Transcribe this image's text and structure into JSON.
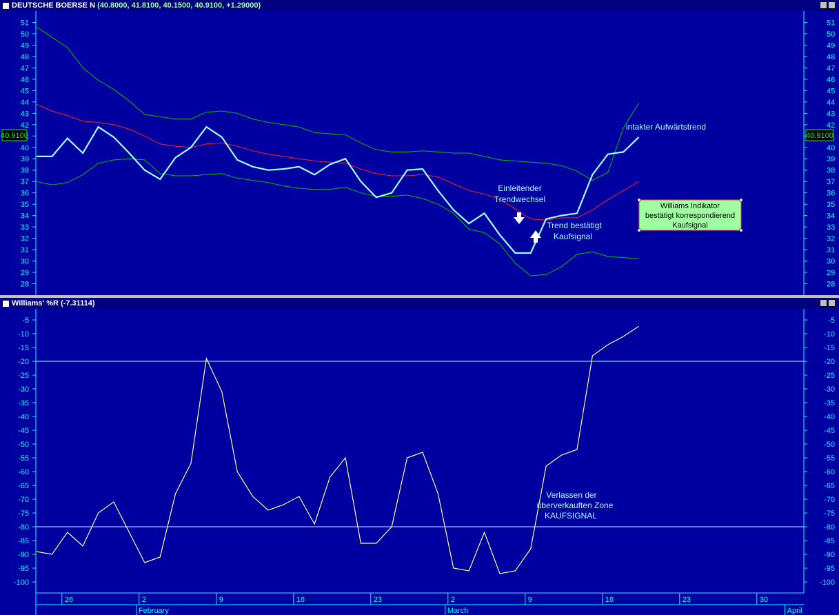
{
  "price_panel": {
    "title": "DEUTSCHE BOERSE N",
    "values_text": "(40.8000, 41.8100, 40.1500, 40.9100, +1.29000)",
    "last_price_label": "40.9100"
  },
  "indicator_panel": {
    "title": "Williams' %R",
    "values_text": "(-7.31114)"
  },
  "annotations": {
    "uptrend": "intakter Aufwärtstrend",
    "reversal_line1": "Einleitender",
    "reversal_line2": "Trendwechsel",
    "confirm_line1": "Trend bestätigt",
    "confirm_line2": "Kaufsignal",
    "box_line1": "Williams Indikator",
    "box_line2": "bestätigt korrespondierend",
    "box_line3": "Kaufsignal",
    "exit_line1": "Verlassen der",
    "exit_line2": "überverkauften Zone",
    "exit_line3": "KAUFSIGNAL"
  },
  "colors": {
    "background": "#0000a0",
    "price_line": "#a0ffff",
    "bands": "#00c000",
    "moving_average": "#ff2020",
    "williams_line": "#ffffa0",
    "threshold_lines": "#a0ffff",
    "axis_text": "#00ffff",
    "note_box": "#a0ffa0",
    "price_tag": "#00ff00"
  },
  "x_axis": {
    "day_labels": [
      {
        "label": "26",
        "day": 2
      },
      {
        "label": "2",
        "day": 7
      },
      {
        "label": "9",
        "day": 12
      },
      {
        "label": "16",
        "day": 17
      },
      {
        "label": "23",
        "day": 22
      },
      {
        "label": "2",
        "day": 27
      },
      {
        "label": "9",
        "day": 32
      },
      {
        "label": "16",
        "day": 37
      },
      {
        "label": "23",
        "day": 42
      },
      {
        "label": "30",
        "day": 47
      }
    ],
    "month_labels": [
      {
        "label": "February",
        "day": 6.6
      },
      {
        "label": "March",
        "day": 26.6
      },
      {
        "label": "April",
        "day": 48.6
      }
    ]
  },
  "chart_data": [
    {
      "type": "line",
      "title": "DEUTSCHE BOERSE N",
      "x": [
        0,
        1,
        2,
        3,
        4,
        5,
        6,
        7,
        8,
        9,
        10,
        11,
        12,
        13,
        14,
        15,
        16,
        17,
        18,
        19,
        20,
        21,
        22,
        23,
        24,
        25,
        26,
        27,
        28,
        29,
        30,
        31,
        32,
        33,
        34,
        35,
        36,
        37,
        38,
        39
      ],
      "ylim": [
        27,
        52
      ],
      "yticks": [
        28,
        29,
        30,
        31,
        32,
        33,
        34,
        35,
        36,
        37,
        38,
        39,
        40,
        41,
        42,
        43,
        44,
        45,
        46,
        47,
        48,
        49,
        50,
        51
      ],
      "series": [
        {
          "name": "Close",
          "values": [
            39.2,
            39.2,
            40.8,
            39.5,
            41.8,
            40.9,
            39.5,
            38.0,
            37.2,
            39.1,
            40.0,
            41.8,
            40.9,
            38.9,
            38.3,
            38.0,
            38.1,
            38.3,
            37.6,
            38.5,
            39.0,
            37.0,
            35.6,
            36.0,
            38.0,
            38.1,
            36.2,
            34.5,
            33.3,
            34.2,
            32.3,
            30.7,
            30.7,
            33.7,
            34.0,
            34.2,
            37.6,
            39.4,
            39.6,
            40.9
          ]
        },
        {
          "name": "Moving Average",
          "values": [
            43.8,
            43.2,
            42.8,
            42.3,
            42.2,
            42.0,
            41.6,
            41.0,
            40.3,
            40.1,
            40.0,
            40.3,
            40.4,
            40.1,
            39.7,
            39.4,
            39.2,
            39.0,
            38.8,
            38.7,
            38.6,
            38.1,
            37.7,
            37.5,
            37.5,
            37.6,
            37.4,
            36.8,
            36.2,
            35.9,
            35.4,
            34.6,
            33.7,
            33.6,
            33.8,
            33.8,
            34.5,
            35.4,
            36.2,
            37.0
          ]
        },
        {
          "name": "Upper Band",
          "values": [
            50.6,
            49.7,
            48.8,
            47.0,
            45.9,
            45.1,
            44.1,
            42.9,
            42.7,
            42.5,
            42.5,
            43.1,
            43.2,
            43.0,
            42.5,
            42.2,
            42.0,
            41.8,
            41.3,
            41.2,
            41.1,
            40.4,
            39.8,
            39.6,
            39.6,
            39.7,
            39.6,
            39.5,
            39.5,
            39.2,
            38.9,
            38.8,
            38.7,
            38.6,
            38.4,
            37.9,
            37.1,
            37.8,
            41.7,
            43.9
          ]
        },
        {
          "name": "Lower Band",
          "values": [
            37.0,
            36.7,
            36.9,
            37.6,
            38.6,
            38.9,
            39.0,
            38.9,
            37.7,
            37.5,
            37.5,
            37.6,
            37.7,
            37.3,
            37.1,
            36.9,
            36.6,
            36.4,
            36.3,
            36.3,
            36.5,
            36.0,
            35.7,
            35.7,
            35.8,
            35.5,
            35.0,
            34.2,
            32.8,
            32.5,
            31.5,
            29.8,
            28.7,
            28.8,
            29.5,
            30.6,
            30.8,
            30.4,
            30.3,
            30.2
          ]
        }
      ]
    },
    {
      "type": "line",
      "title": "Williams' %R",
      "x": [
        0,
        1,
        2,
        3,
        4,
        5,
        6,
        7,
        8,
        9,
        10,
        11,
        12,
        13,
        14,
        15,
        16,
        17,
        18,
        19,
        20,
        21,
        22,
        23,
        24,
        25,
        26,
        27,
        28,
        29,
        30,
        31,
        32,
        33,
        34,
        35,
        36,
        37,
        38,
        39
      ],
      "ylim": [
        -104,
        -1
      ],
      "yticks": [
        -5,
        -10,
        -15,
        -20,
        -25,
        -30,
        -35,
        -40,
        -45,
        -50,
        -55,
        -60,
        -65,
        -70,
        -75,
        -80,
        -85,
        -90,
        -95,
        -100
      ],
      "reference_lines": [
        -20,
        -80
      ],
      "series": [
        {
          "name": "Williams' %R",
          "values": [
            -89,
            -90,
            -82,
            -87,
            -75,
            -71,
            -82,
            -93,
            -91,
            -68,
            -57,
            -19,
            -31,
            -60,
            -69,
            -74,
            -72,
            -69,
            -79,
            -62,
            -55,
            -86,
            -86,
            -80,
            -55,
            -53,
            -68,
            -95,
            -96,
            -82,
            -97,
            -96,
            -88,
            -58,
            -54,
            -52,
            -18,
            -14,
            -11,
            -7.3
          ]
        }
      ]
    }
  ]
}
